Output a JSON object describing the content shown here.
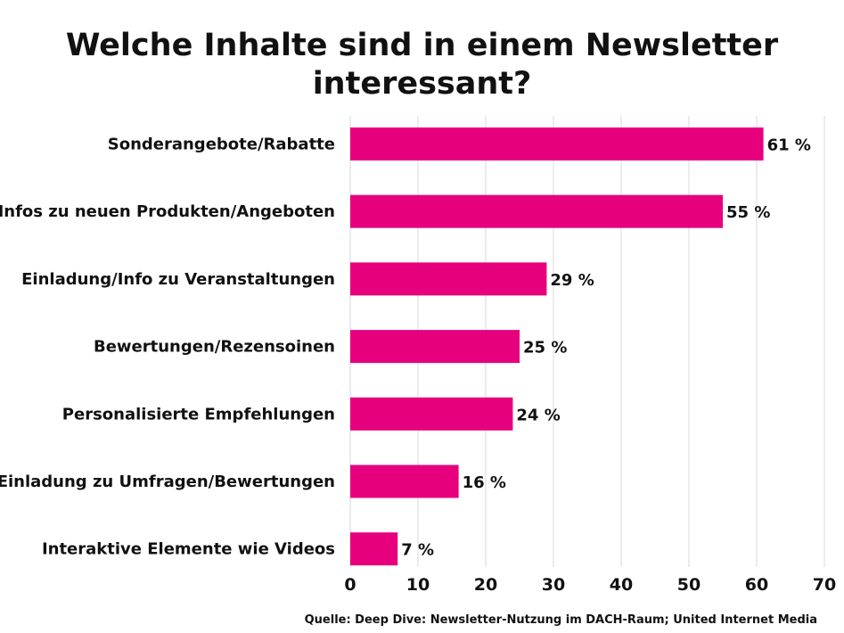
{
  "chart_data": {
    "type": "bar",
    "orientation": "horizontal",
    "title_lines": [
      "Welche Inhalte sind in einem Newsletter",
      "interessant?"
    ],
    "categories": [
      "Sonderangebote/Rabatte",
      "Infos zu neuen Produkten/Angeboten",
      "Einladung/Info zu Veranstaltungen",
      "Bewertungen/Rezensoinen",
      "Personalisierte Empfehlungen",
      "Einladung zu Umfragen/Bewertungen",
      "Interaktive Elemente wie Videos"
    ],
    "values": [
      61,
      55,
      29,
      25,
      24,
      16,
      7
    ],
    "value_labels": [
      "61 %",
      "55 %",
      "29 %",
      "25 %",
      "24 %",
      "16 %",
      "7 %"
    ],
    "xlim": [
      0,
      70
    ],
    "xticks": [
      0,
      10,
      20,
      30,
      40,
      50,
      60,
      70
    ],
    "grid": "vertical",
    "bar_color": "#e6007e",
    "source": "Quelle: Deep Dive: Newsletter-Nutzung im DACH-Raum; United Internet Media"
  }
}
